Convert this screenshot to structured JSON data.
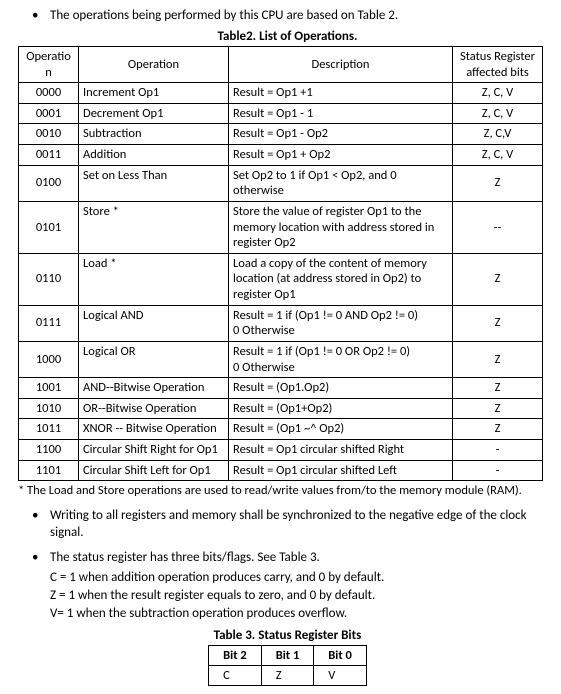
{
  "intro_bullet": "The operations being performed by this CPU are based on Table 2.",
  "table2_title": "Table2. List of Operations.",
  "table2": {
    "headers": {
      "code": "Operation",
      "op": "Operation",
      "desc": "Description",
      "status": "Status Register affected bits"
    },
    "rows": [
      {
        "code": "0000",
        "op": "Increment Op1",
        "desc": "Result = Op1 +1",
        "status": "Z, C, V"
      },
      {
        "code": "0001",
        "op": "Decrement Op1",
        "desc": "Result = Op1 - 1",
        "status": "Z, C, V"
      },
      {
        "code": "0010",
        "op": "Subtraction",
        "desc": "Result = Op1 - Op2",
        "status": "Z, C,V"
      },
      {
        "code": "0011",
        "op": "Addition",
        "desc": "Result = Op1 + Op2",
        "status": "Z, C, V"
      },
      {
        "code": "0100",
        "op": "Set on Less Than",
        "desc": "Set Op2 to 1 if Op1 < Op2, and 0 otherwise",
        "status": "Z"
      },
      {
        "code": "0101",
        "op": "Store *",
        "desc": "Store the value of register Op1 to the memory location with address stored in register Op2",
        "status": "--"
      },
      {
        "code": "0110",
        "op": "Load *",
        "desc": "Load a copy of the content of memory location (at address stored in Op2) to register Op1",
        "status": "Z"
      },
      {
        "code": "0111",
        "op": "Logical AND",
        "desc": "Result = 1 if (Op1 != 0 AND Op2 != 0)\n0 Otherwise",
        "status": "Z"
      },
      {
        "code": "1000",
        "op": "Logical OR",
        "desc": "Result = 1 if (Op1 != 0 OR Op2 != 0)\n0 Otherwise",
        "status": "Z"
      },
      {
        "code": "1001",
        "op": "AND--Bitwise Operation",
        "desc": "Result = (Op1.Op2)",
        "status": "Z"
      },
      {
        "code": "1010",
        "op": "OR--Bitwise Operation",
        "desc": "Result = (Op1+Op2)",
        "status": "Z"
      },
      {
        "code": "1011",
        "op": "XNOR -- Bitwise Operation",
        "desc": "Result = (Op1 ~^ Op2)",
        "status": "Z"
      },
      {
        "code": "1100",
        "op": "Circular Shift Right for Op1",
        "desc": "Result = Op1 circular shifted Right",
        "status": "-"
      },
      {
        "code": "1101",
        "op": "Circular Shift Left for Op1",
        "desc": "Result = Op1 circular shifted Left",
        "status": "-"
      }
    ]
  },
  "footnote": "* The Load and Store operations are used to read/write values from/to the memory module (RAM).",
  "sync_bullet": "Writing to all registers and memory shall be synchronized to the negative edge of the clock signal.",
  "status_bullet": "The status register has three bits/flags. See Table 3.",
  "status_lines": [
    "C = 1 when addition operation produces carry, and 0 by default.",
    "Z = 1 when the result register equals to zero, and 0 by default.",
    "V= 1 when the subtraction operation produces overflow."
  ],
  "table3_title": "Table 3. Status Register Bits",
  "table3": {
    "headers": [
      "Bit 2",
      "Bit 1",
      "Bit 0"
    ],
    "row": [
      "C",
      "Z",
      "V"
    ]
  }
}
